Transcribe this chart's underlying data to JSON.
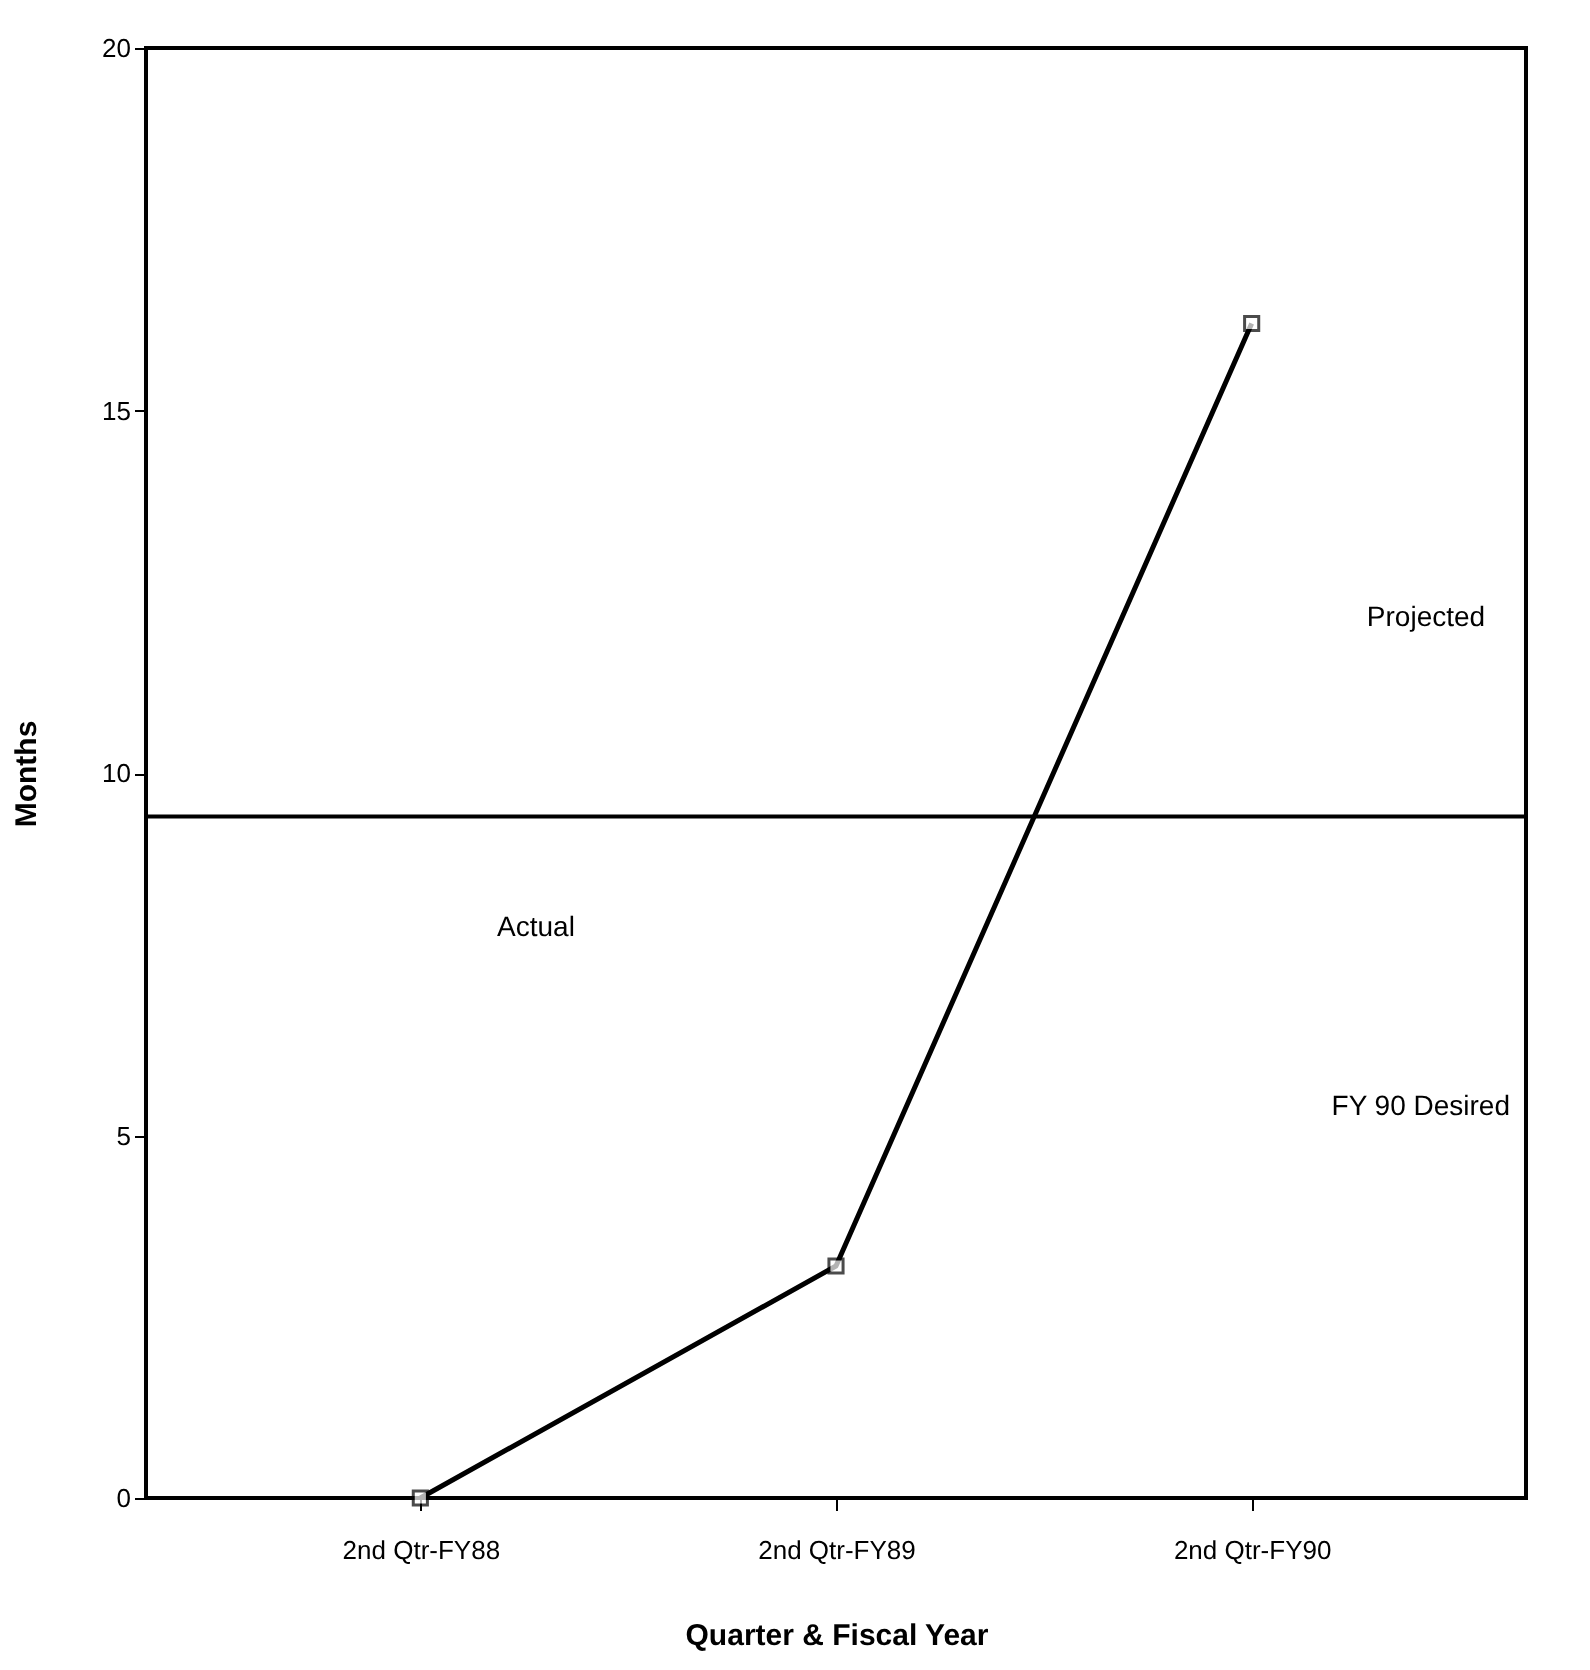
{
  "chart_data": {
    "type": "line",
    "xlabel": "Quarter & Fiscal Year",
    "ylabel": "Months",
    "categories": [
      "2nd Qtr-FY88",
      "2nd Qtr-FY89",
      "2nd Qtr-FY90"
    ],
    "series": [
      {
        "color": "#000000",
        "values": [
          0,
          3.2,
          16.2
        ]
      }
    ],
    "ylim": [
      0,
      20
    ],
    "yticks": [
      0,
      5,
      10,
      15,
      20
    ],
    "grid": false,
    "marker": "square",
    "line_style": "solid",
    "ref_lines": [
      {
        "axis": "y",
        "value": 9.4,
        "label": "FY 90 Desired",
        "color": "#000000"
      }
    ],
    "annotations": [
      "Actual",
      "Projected"
    ]
  }
}
